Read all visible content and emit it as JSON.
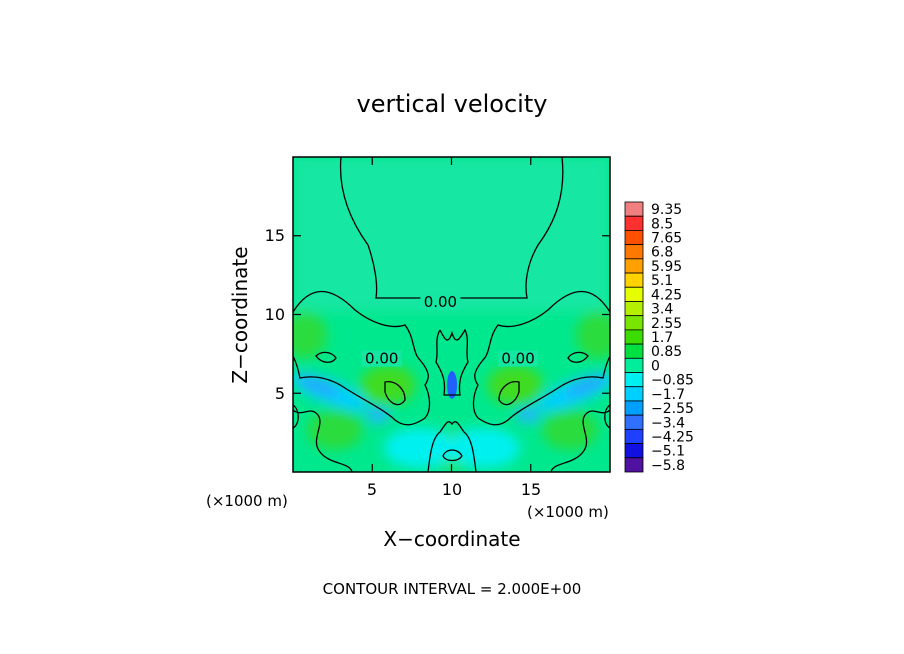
{
  "chart_data": {
    "type": "heatmap",
    "title": "vertical velocity",
    "xlabel": "X−coordinate",
    "ylabel": "Z−coordinate",
    "x_unit": "(×1000 m)",
    "y_unit": "(×1000 m)",
    "xlim": [
      0,
      20
    ],
    "ylim": [
      0,
      20
    ],
    "x_ticks": [
      5,
      10,
      15
    ],
    "y_ticks": [
      5,
      10,
      15
    ],
    "x_tick_labels": [
      "5",
      "10",
      "15"
    ],
    "y_tick_labels": [
      "5",
      "10",
      "15"
    ],
    "colorbar": {
      "levels": [
        9.35,
        8.5,
        7.65,
        6.8,
        5.95,
        5.1,
        4.25,
        3.4,
        2.55,
        1.7,
        0.85,
        0,
        -0.85,
        -1.7,
        -2.55,
        -3.4,
        -4.25,
        -5.1,
        -5.8
      ],
      "labels": [
        "9.35",
        "8.5",
        "7.65",
        "6.8",
        "5.95",
        "5.1",
        "4.25",
        "3.4",
        "2.55",
        "1.7",
        "0.85",
        "0",
        "−0.85",
        "−1.7",
        "−2.55",
        "−3.4",
        "−4.25",
        "−5.1",
        "−5.8"
      ],
      "colors": [
        "#f08080",
        "#ff3030",
        "#ff5000",
        "#ff7800",
        "#ffa000",
        "#ffd200",
        "#e6ff00",
        "#b4f000",
        "#78e600",
        "#3cdc00",
        "#00e040",
        "#00ee99",
        "#00f0f0",
        "#00d0ff",
        "#00a0ff",
        "#3070ff",
        "#2040ff",
        "#1010e0",
        "#5010a0"
      ]
    },
    "contour_labels": [
      {
        "text": "0.00",
        "x": 9.3,
        "z": 10.8
      },
      {
        "text": "0.00",
        "x": 5.6,
        "z": 7.2
      },
      {
        "text": "0.00",
        "x": 14.2,
        "z": 7.2
      }
    ],
    "contour_interval_text": "CONTOUR INTERVAL = 2.000E+00"
  }
}
